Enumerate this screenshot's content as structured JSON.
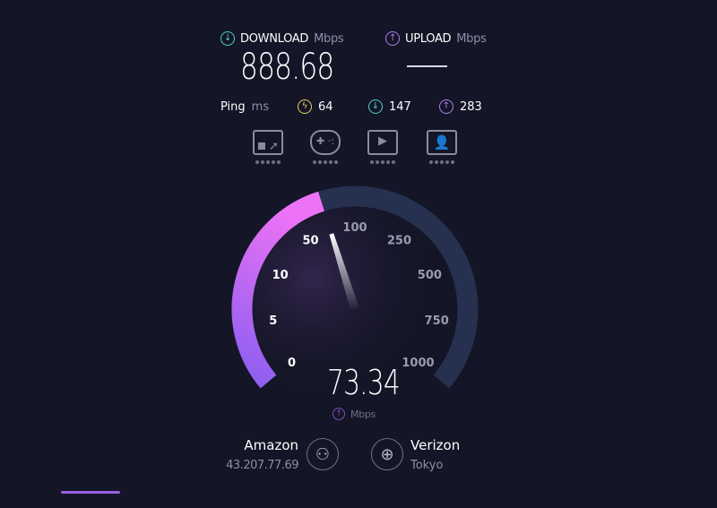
{
  "results": {
    "download": {
      "label": "DOWNLOAD",
      "unit": "Mbps",
      "value": "888.68",
      "icon": "download-arrow-icon",
      "color": "#4fd1c5"
    },
    "upload": {
      "label": "UPLOAD",
      "unit": "Mbps",
      "value": "—",
      "icon": "upload-arrow-icon",
      "color": "#b07ff0"
    }
  },
  "ping": {
    "label": "Ping",
    "unit": "ms",
    "idle": "64",
    "download": "147",
    "upload": "283",
    "colors": {
      "idle": "#e4d35a",
      "download": "#4fd1c5",
      "upload": "#b07ff0"
    }
  },
  "quality_icons": [
    "web-browsing-icon",
    "gaming-icon",
    "video-streaming-icon",
    "video-call-icon"
  ],
  "gauge": {
    "value": 73.34,
    "value_text": "73.34",
    "unit": "Mbps",
    "mode_icon": "upload-arrow-icon",
    "ticks": [
      "0",
      "5",
      "10",
      "50",
      "100",
      "250",
      "500",
      "750",
      "1000"
    ],
    "colors": {
      "track": "#26304f",
      "fill_start": "#8a5ef0",
      "fill_end": "#ec72f6"
    }
  },
  "provider": {
    "name": "Amazon",
    "ip": "43.207.77.69",
    "icon": "user-icon"
  },
  "server": {
    "name": "Verizon",
    "location": "Tokyo",
    "icon": "globe-icon"
  }
}
